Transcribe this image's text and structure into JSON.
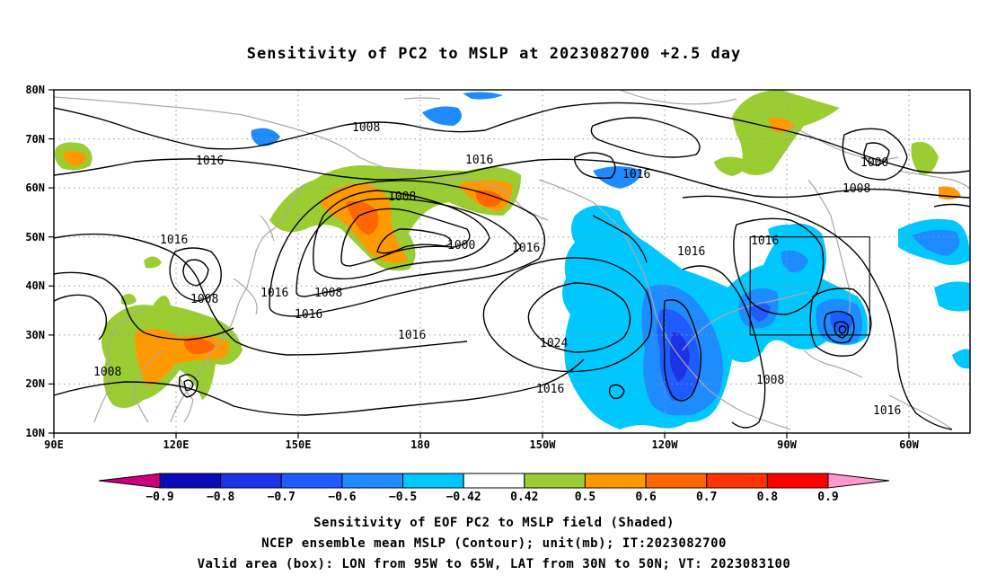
{
  "title": "Sensitivity of PC2 to MSLP at 2023082700 +2.5 day",
  "lat_labels": [
    "80N",
    "70N",
    "60N",
    "50N",
    "40N",
    "30N",
    "20N",
    "10N"
  ],
  "lon_labels": [
    "90E",
    "120E",
    "150E",
    "180",
    "150W",
    "120W",
    "90W",
    "60W"
  ],
  "contour_labels": [
    "1008",
    "1016",
    "1016",
    "1016",
    "1008",
    "1000",
    "1016",
    "1008",
    "1016",
    "1008",
    "1016",
    "1000",
    "1016",
    "1016",
    "1008",
    "1016",
    "1016",
    "1024",
    "1016",
    "1008",
    "1008",
    "1016"
  ],
  "colorbar": {
    "labels": [
      "−0.9",
      "−0.8",
      "−0.7",
      "−0.6",
      "−0.5",
      "−0.42",
      "0.42",
      "0.5",
      "0.6",
      "0.7",
      "0.8",
      "0.9"
    ],
    "colors": [
      "#c8007c",
      "#0a0ab8",
      "#1c32e6",
      "#1f5cff",
      "#1e8cff",
      "#00c8ff",
      "#ffffff",
      "#9acd32",
      "#ff9900",
      "#ff6600",
      "#ff3300",
      "#ff0000",
      "#ff99cc"
    ]
  },
  "shading_colors": {
    "neg_light": "#00c8ff",
    "neg_mid": "#1e8cff",
    "neg_strong": "#1f5cff",
    "neg_max": "#1c32e6",
    "pos_light": "#9acd32",
    "pos_mid": "#ff9900",
    "pos_strong": "#ff6600",
    "pos_max": "#ff3300"
  },
  "footer": {
    "line1": "Sensitivity of EOF PC2 to MSLP field (Shaded)",
    "line2": "NCEP ensemble mean MSLP (Contour); unit(mb); IT:2023082700",
    "line3": "Valid area (box): LON from 95W to 65W, LAT from 30N to 50N; VT: 2023083100"
  }
}
